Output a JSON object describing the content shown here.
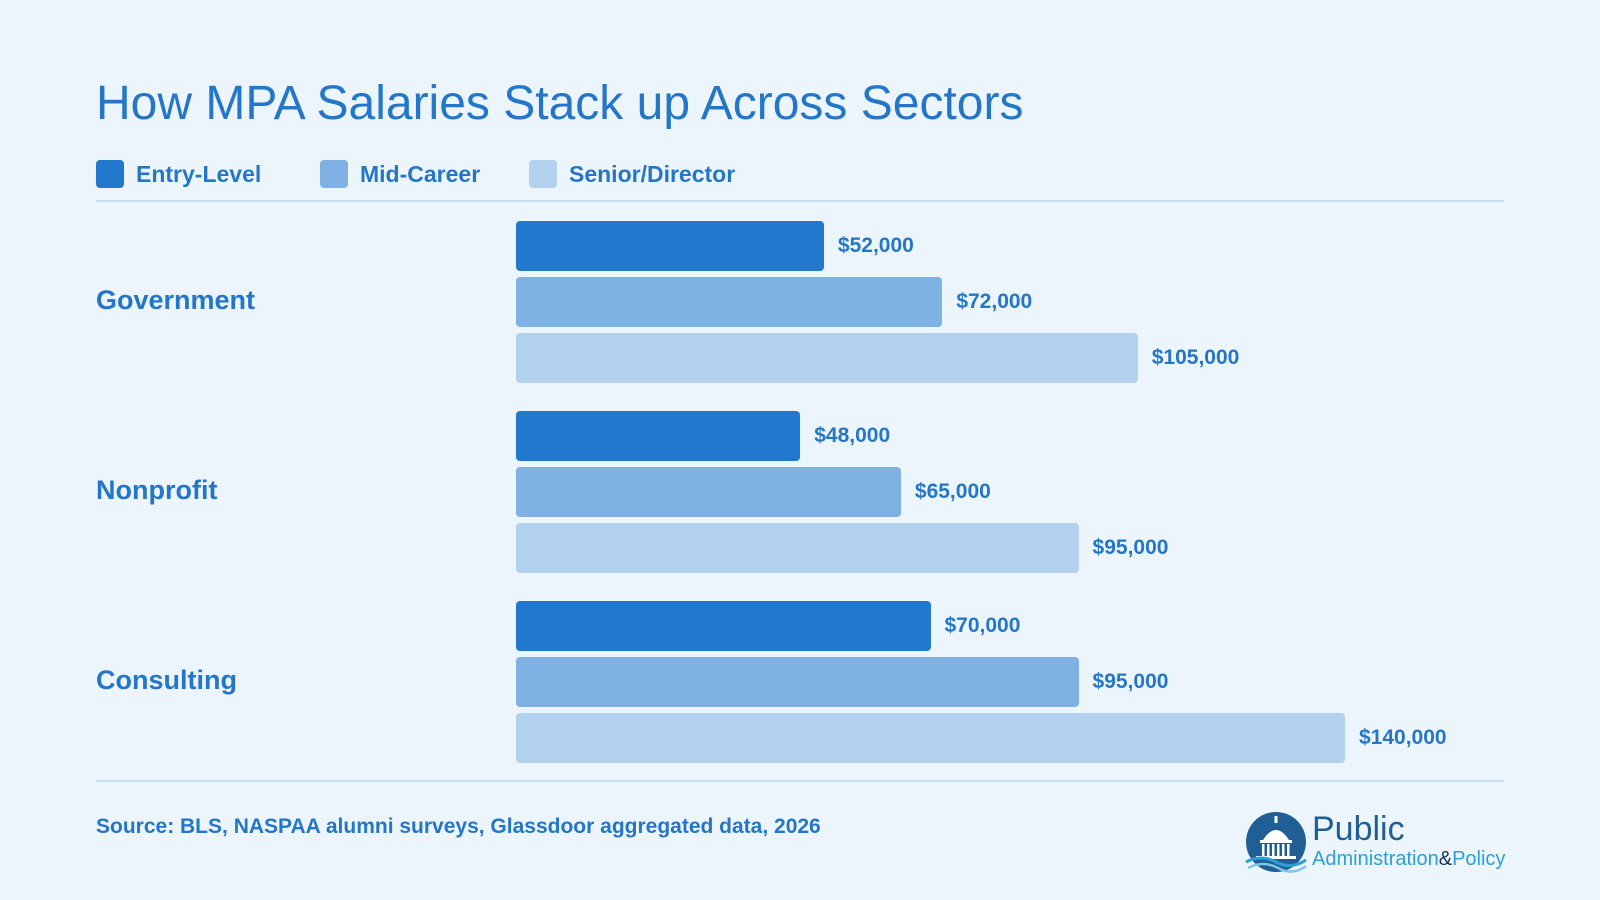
{
  "title": "How MPA Salaries Stack up Across Sectors",
  "legend": [
    {
      "label": "Entry-Level",
      "color": "#2178cc"
    },
    {
      "label": "Mid-Career",
      "color": "#7fb1e2"
    },
    {
      "label": "Senior/Director",
      "color": "#b2d1ee"
    }
  ],
  "chart_data": {
    "type": "bar",
    "orientation": "horizontal",
    "title": "How MPA Salaries Stack up Across Sectors",
    "categories": [
      "Government",
      "Nonprofit",
      "Consulting"
    ],
    "series": [
      {
        "name": "Entry-Level",
        "values": [
          52000,
          48000,
          70000
        ],
        "labels": [
          "$52,000",
          "$48,000",
          "$70,000"
        ]
      },
      {
        "name": "Mid-Career",
        "values": [
          72000,
          65000,
          95000
        ],
        "labels": [
          "$72,000",
          "$65,000",
          "$95,000"
        ]
      },
      {
        "name": "Senior/Director",
        "values": [
          105000,
          95000,
          140000
        ],
        "labels": [
          "$105,000",
          "$95,000",
          "$140,000"
        ]
      }
    ],
    "xlim": [
      0,
      140000
    ],
    "grid": false,
    "legend_position": "top-left"
  },
  "source": "Source: BLS, NASPAA alumni surveys, Glassdoor aggregated data, 2026",
  "logo": {
    "line1": "Public",
    "admin": "Administration",
    "amp": "&",
    "policy": "Policy"
  }
}
